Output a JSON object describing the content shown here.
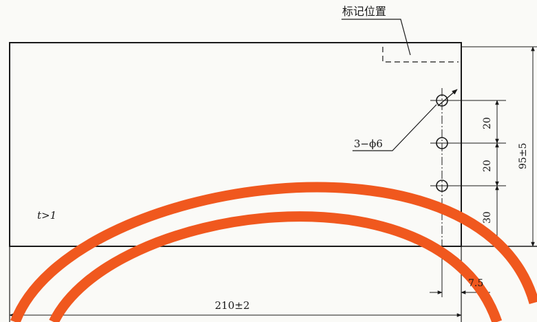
{
  "labels": {
    "mark_position": "标记位置",
    "holes": "3−ϕ6",
    "thickness": "t>1",
    "dim_width": "210±2",
    "dim_height": "95±5",
    "dim_20_a": "20",
    "dim_20_b": "20",
    "dim_30": "30",
    "dim_7_5": "7.5"
  },
  "colors": {
    "line": "#1a1a1a",
    "arc": "#f0581e",
    "paper": "#fafaf7"
  }
}
